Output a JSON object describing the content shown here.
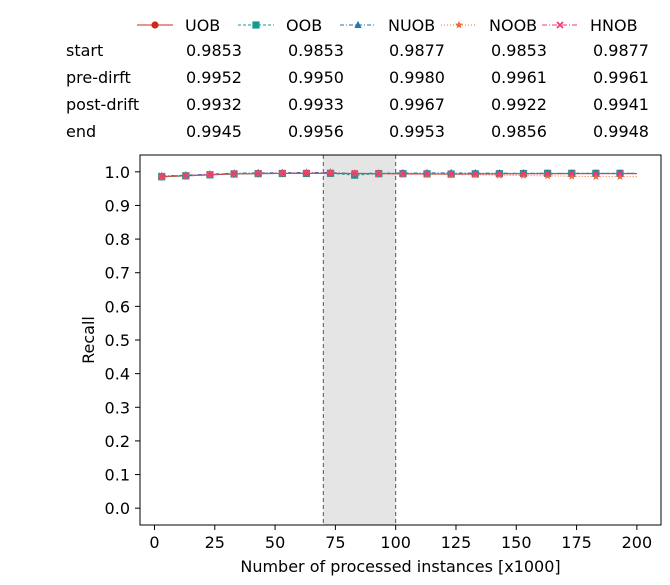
{
  "chart_data": {
    "type": "line",
    "xlabel": "Number of processed instances [x1000]",
    "ylabel": "Recall",
    "xlim": [
      -6,
      210
    ],
    "ylim": [
      -0.05,
      1.05
    ],
    "xticks": [
      0,
      25,
      50,
      75,
      100,
      125,
      150,
      175,
      200
    ],
    "yticks": [
      0.0,
      0.1,
      0.2,
      0.3,
      0.4,
      0.5,
      0.6,
      0.7,
      0.8,
      0.9,
      1.0
    ],
    "xtick_labels": [
      "0",
      "25",
      "50",
      "75",
      "100",
      "125",
      "150",
      "175",
      "200"
    ],
    "ytick_labels": [
      "0.0",
      "0.1",
      "0.2",
      "0.3",
      "0.4",
      "0.5",
      "0.6",
      "0.7",
      "0.8",
      "0.9",
      "1.0"
    ],
    "grid": false,
    "drift_region": [
      70,
      100
    ],
    "legend_position": "top",
    "x": [
      3,
      13,
      23,
      33,
      43,
      53,
      63,
      73,
      83,
      93,
      103,
      113,
      123,
      133,
      143,
      153,
      163,
      173,
      183,
      193,
      200
    ],
    "series": [
      {
        "name": "UOB",
        "color": "#cc2a1f",
        "marker": "circle",
        "dash": "",
        "values": [
          0.9853,
          0.988,
          0.991,
          0.9935,
          0.9945,
          0.995,
          0.9952,
          0.9955,
          0.9945,
          0.9945,
          0.994,
          0.9935,
          0.9932,
          0.9935,
          0.994,
          0.9942,
          0.9944,
          0.9945,
          0.9945,
          0.9945,
          0.9945
        ]
      },
      {
        "name": "OOB",
        "color": "#139c8c",
        "marker": "square",
        "dash": "3,2",
        "values": [
          0.9853,
          0.988,
          0.991,
          0.9935,
          0.9945,
          0.995,
          0.995,
          0.9955,
          0.99,
          0.9945,
          0.9945,
          0.994,
          0.9933,
          0.994,
          0.9945,
          0.995,
          0.9955,
          0.9956,
          0.9956,
          0.9956,
          0.9956
        ]
      },
      {
        "name": "NUOB",
        "color": "#1f77b4",
        "marker": "triangle",
        "dash": "4,2,1,2",
        "values": [
          0.9877,
          0.99,
          0.993,
          0.996,
          0.997,
          0.9975,
          0.998,
          0.998,
          0.995,
          0.996,
          0.9965,
          0.9967,
          0.9967,
          0.9962,
          0.996,
          0.9958,
          0.9956,
          0.9954,
          0.9953,
          0.9953,
          0.9953
        ]
      },
      {
        "name": "NOOB",
        "color": "#f26a33",
        "marker": "star",
        "dash": "1,2",
        "values": [
          0.9853,
          0.988,
          0.991,
          0.9935,
          0.9945,
          0.995,
          0.9961,
          0.996,
          0.995,
          0.994,
          0.993,
          0.9925,
          0.9922,
          0.991,
          0.99,
          0.989,
          0.988,
          0.987,
          0.9856,
          0.9856,
          0.9856
        ]
      },
      {
        "name": "HNOB",
        "color": "#e83d7a",
        "marker": "x-square",
        "dash": "5,2,1,2",
        "values": [
          0.9877,
          0.989,
          0.992,
          0.995,
          0.9955,
          0.996,
          0.9961,
          0.996,
          0.9955,
          0.995,
          0.9945,
          0.9943,
          0.9941,
          0.9943,
          0.9945,
          0.9946,
          0.9947,
          0.9948,
          0.9948,
          0.9948,
          0.9948
        ]
      }
    ]
  },
  "table": {
    "rows": [
      {
        "label": "start",
        "values": [
          "0.9853",
          "0.9853",
          "0.9877",
          "0.9853",
          "0.9877"
        ]
      },
      {
        "label": "pre-dirft",
        "values": [
          "0.9952",
          "0.9950",
          "0.9980",
          "0.9961",
          "0.9961"
        ]
      },
      {
        "label": "post-drift",
        "values": [
          "0.9932",
          "0.9933",
          "0.9967",
          "0.9922",
          "0.9941"
        ]
      },
      {
        "label": "end",
        "values": [
          "0.9945",
          "0.9956",
          "0.9953",
          "0.9856",
          "0.9948"
        ]
      }
    ]
  }
}
